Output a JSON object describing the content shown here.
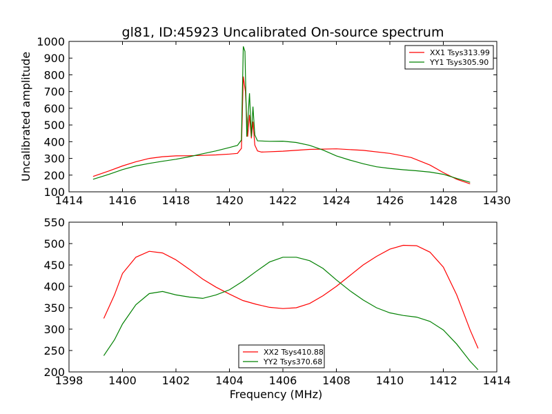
{
  "title": "gl81, ID:45923 Uncalibrated On-source spectrum",
  "colors": {
    "red": "#ff0000",
    "green": "#008000",
    "axes": "#000000",
    "background": "#ffffff"
  },
  "chart_data": [
    {
      "type": "line",
      "title": "gl81, ID:45923 Uncalibrated On-source spectrum",
      "xlabel": "",
      "ylabel": "Uncalibrated amplitude",
      "xlim": [
        1414,
        1430
      ],
      "ylim": [
        100,
        1000
      ],
      "xticks": [
        1414,
        1416,
        1418,
        1420,
        1422,
        1424,
        1426,
        1428,
        1430
      ],
      "yticks": [
        100,
        200,
        300,
        400,
        500,
        600,
        700,
        800,
        900,
        1000
      ],
      "grid": false,
      "legend": "top-right",
      "series": [
        {
          "name": "XX1 Tsys313.99",
          "color": "#ff0000",
          "points": [
            [
              1414.9,
              192
            ],
            [
              1415.5,
              225
            ],
            [
              1416,
              255
            ],
            [
              1416.5,
              280
            ],
            [
              1417,
              300
            ],
            [
              1417.5,
              310
            ],
            [
              1418,
              315
            ],
            [
              1418.5,
              316
            ],
            [
              1419,
              318
            ],
            [
              1419.5,
              321
            ],
            [
              1420,
              326
            ],
            [
              1420.3,
              330
            ],
            [
              1420.45,
              360
            ],
            [
              1420.52,
              790
            ],
            [
              1420.6,
              700
            ],
            [
              1420.68,
              430
            ],
            [
              1420.75,
              560
            ],
            [
              1420.82,
              420
            ],
            [
              1420.88,
              520
            ],
            [
              1420.95,
              380
            ],
            [
              1421.05,
              345
            ],
            [
              1421.2,
              338
            ],
            [
              1422,
              343
            ],
            [
              1423,
              354
            ],
            [
              1424,
              357
            ],
            [
              1425,
              348
            ],
            [
              1426,
              330
            ],
            [
              1426.8,
              305
            ],
            [
              1427.5,
              260
            ],
            [
              1428,
              215
            ],
            [
              1428.5,
              175
            ],
            [
              1429,
              148
            ]
          ]
        },
        {
          "name": "YY1 Tsys305.90",
          "color": "#008000",
          "points": [
            [
              1414.9,
              175
            ],
            [
              1415.5,
              205
            ],
            [
              1416,
              233
            ],
            [
              1416.5,
              255
            ],
            [
              1417,
              270
            ],
            [
              1417.5,
              283
            ],
            [
              1418,
              295
            ],
            [
              1418.5,
              310
            ],
            [
              1419,
              328
            ],
            [
              1419.5,
              345
            ],
            [
              1420,
              365
            ],
            [
              1420.3,
              378
            ],
            [
              1420.45,
              410
            ],
            [
              1420.52,
              970
            ],
            [
              1420.58,
              940
            ],
            [
              1420.65,
              430
            ],
            [
              1420.75,
              690
            ],
            [
              1420.82,
              430
            ],
            [
              1420.88,
              610
            ],
            [
              1420.95,
              440
            ],
            [
              1421.05,
              405
            ],
            [
              1421.5,
              402
            ],
            [
              1422,
              403
            ],
            [
              1422.5,
              395
            ],
            [
              1423,
              378
            ],
            [
              1423.5,
              350
            ],
            [
              1424,
              315
            ],
            [
              1424.5,
              290
            ],
            [
              1425,
              268
            ],
            [
              1425.5,
              250
            ],
            [
              1426,
              240
            ],
            [
              1426.5,
              232
            ],
            [
              1427,
              226
            ],
            [
              1427.5,
              218
            ],
            [
              1428,
              205
            ],
            [
              1428.5,
              180
            ],
            [
              1429,
              157
            ]
          ]
        }
      ]
    },
    {
      "type": "line",
      "title": "",
      "xlabel": "Frequency (MHz)",
      "ylabel": "",
      "xlim": [
        1398,
        1414
      ],
      "ylim": [
        200,
        550
      ],
      "xticks": [
        1398,
        1400,
        1402,
        1404,
        1406,
        1408,
        1410,
        1412,
        1414
      ],
      "yticks": [
        200,
        250,
        300,
        350,
        400,
        450,
        500,
        550
      ],
      "grid": false,
      "legend": "bottom-center",
      "series": [
        {
          "name": "XX2 Tsys410.88",
          "color": "#ff0000",
          "points": [
            [
              1399.3,
              325
            ],
            [
              1399.7,
              380
            ],
            [
              1400,
              430
            ],
            [
              1400.5,
              468
            ],
            [
              1401,
              482
            ],
            [
              1401.5,
              478
            ],
            [
              1402,
              462
            ],
            [
              1402.5,
              440
            ],
            [
              1403,
              417
            ],
            [
              1403.5,
              398
            ],
            [
              1404,
              382
            ],
            [
              1404.5,
              367
            ],
            [
              1405,
              358
            ],
            [
              1405.5,
              351
            ],
            [
              1406,
              348
            ],
            [
              1406.5,
              350
            ],
            [
              1407,
              360
            ],
            [
              1407.5,
              378
            ],
            [
              1408,
              400
            ],
            [
              1408.5,
              425
            ],
            [
              1409,
              450
            ],
            [
              1409.5,
              470
            ],
            [
              1410,
              487
            ],
            [
              1410.5,
              496
            ],
            [
              1411,
              495
            ],
            [
              1411.5,
              480
            ],
            [
              1412,
              445
            ],
            [
              1412.5,
              380
            ],
            [
              1413,
              298
            ],
            [
              1413.3,
              255
            ]
          ]
        },
        {
          "name": "YY2 Tsys370.68",
          "color": "#008000",
          "points": [
            [
              1399.3,
              238
            ],
            [
              1399.7,
              275
            ],
            [
              1400,
              312
            ],
            [
              1400.5,
              357
            ],
            [
              1401,
              383
            ],
            [
              1401.5,
              388
            ],
            [
              1402,
              380
            ],
            [
              1402.5,
              375
            ],
            [
              1403,
              372
            ],
            [
              1403.5,
              380
            ],
            [
              1404,
              392
            ],
            [
              1404.5,
              412
            ],
            [
              1405,
              435
            ],
            [
              1405.5,
              457
            ],
            [
              1406,
              468
            ],
            [
              1406.5,
              468
            ],
            [
              1407,
              460
            ],
            [
              1407.5,
              442
            ],
            [
              1408,
              415
            ],
            [
              1408.5,
              390
            ],
            [
              1409,
              368
            ],
            [
              1409.5,
              350
            ],
            [
              1410,
              338
            ],
            [
              1410.5,
              332
            ],
            [
              1411,
              328
            ],
            [
              1411.5,
              318
            ],
            [
              1412,
              298
            ],
            [
              1412.5,
              265
            ],
            [
              1413,
              225
            ],
            [
              1413.3,
              205
            ]
          ]
        }
      ]
    }
  ]
}
